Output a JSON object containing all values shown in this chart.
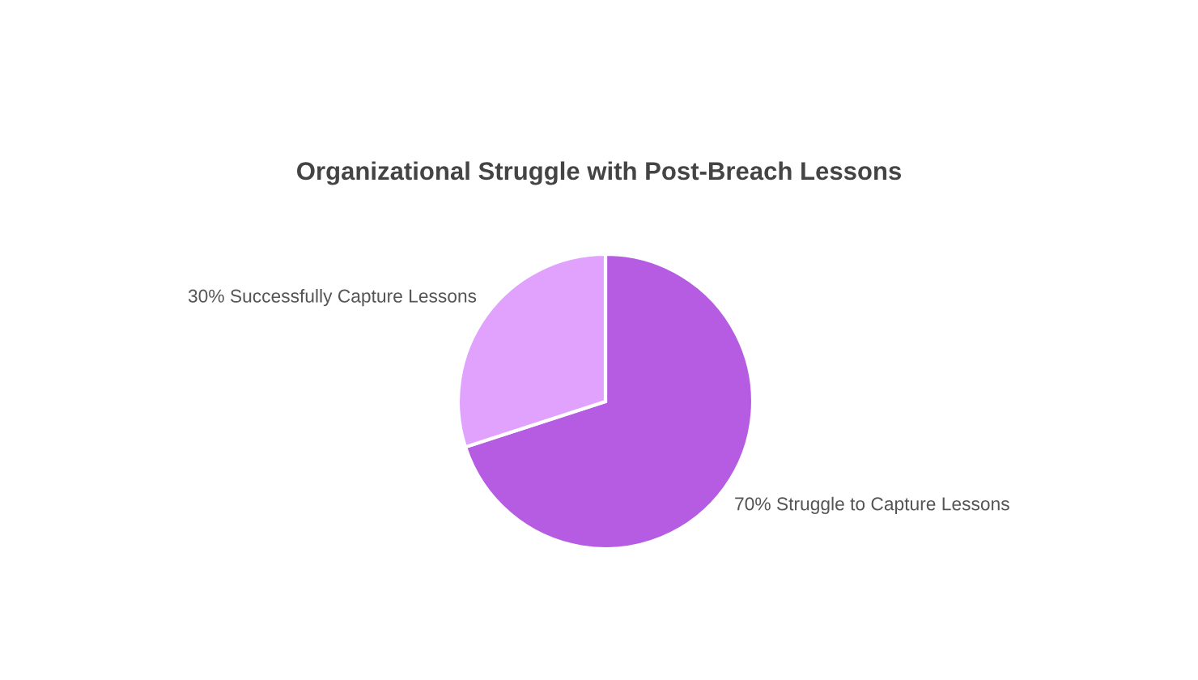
{
  "chart_data": {
    "type": "pie",
    "title": "Organizational Struggle with Post-Breach Lessons",
    "categories": [
      "Struggle to Capture Lessons",
      "Successfully Capture Lessons"
    ],
    "values": [
      70,
      30
    ],
    "value_labels": [
      "70%",
      "30%"
    ],
    "colors": [
      "#b55ce3",
      "#e0a2fd"
    ]
  }
}
